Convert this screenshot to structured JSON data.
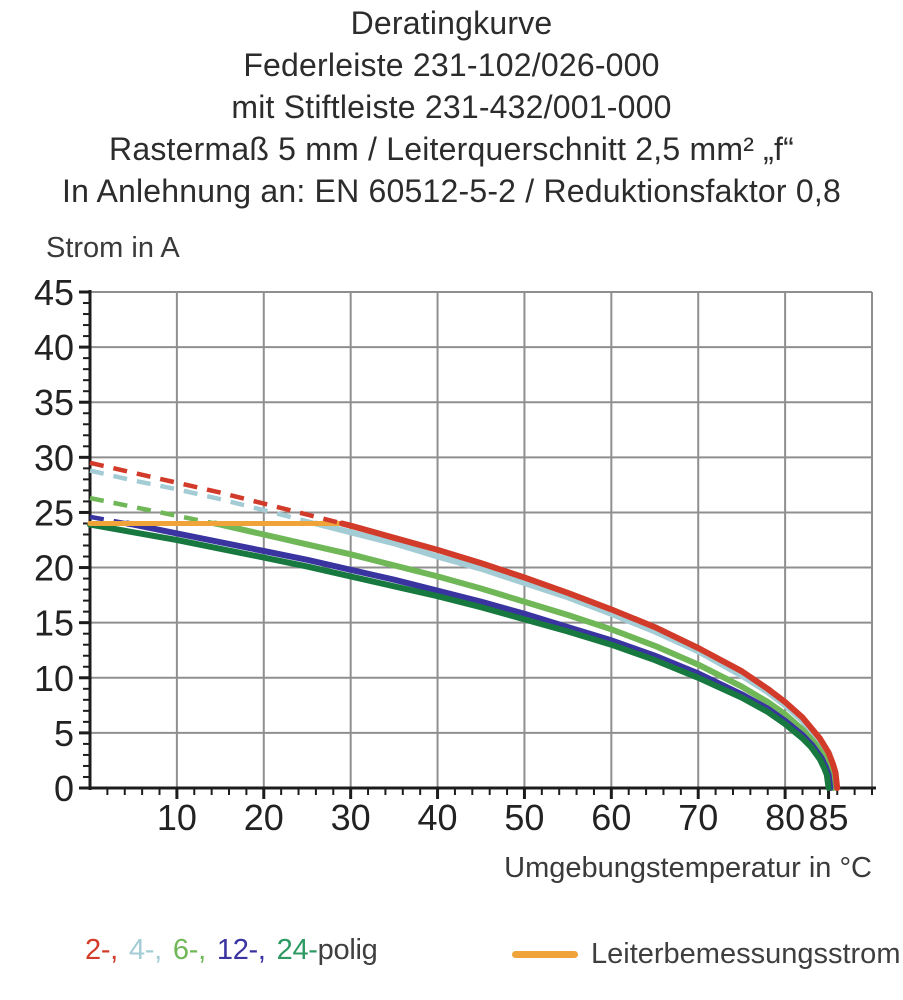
{
  "title": {
    "lines": [
      "Deratingkurve",
      "Federleiste 231-102/026-000",
      "mit Stiftleiste 231-432/001-000",
      "Rastermaß 5 mm / Leiterquerschnitt 2,5 mm² „f“",
      "In Anlehnung an: EN 60512-5-2 / Reduktionsfaktor 0,8"
    ]
  },
  "chart_data": {
    "type": "line",
    "title": "Deratingkurve",
    "xlabel": "Umgebungstemperatur in °C",
    "ylabel": "Strom in A",
    "xlim": [
      0,
      90
    ],
    "ylim": [
      0,
      45
    ],
    "x_major_ticks": [
      10,
      20,
      30,
      40,
      50,
      60,
      70,
      80,
      85
    ],
    "x_minor_step": 2,
    "y_major_ticks": [
      0,
      5,
      10,
      15,
      20,
      25,
      30,
      35,
      40,
      45
    ],
    "y_minor_step": 1,
    "grid": true,
    "legend_position": "bottom",
    "dash_above_current": 24,
    "rated_current": {
      "label": "Leiterbemessungsstrom",
      "value": 24,
      "x_start": 0,
      "x_end": 29,
      "color": "#f0a339"
    },
    "series": [
      {
        "name": "2-polig",
        "color": "#d23b29",
        "points": [
          [
            0,
            29.5
          ],
          [
            5,
            28.6
          ],
          [
            10,
            27.7
          ],
          [
            15,
            26.8
          ],
          [
            20,
            25.8
          ],
          [
            25,
            24.8
          ],
          [
            30,
            23.8
          ],
          [
            35,
            22.7
          ],
          [
            40,
            21.6
          ],
          [
            45,
            20.4
          ],
          [
            50,
            19.1
          ],
          [
            55,
            17.7
          ],
          [
            60,
            16.2
          ],
          [
            65,
            14.6
          ],
          [
            70,
            12.7
          ],
          [
            75,
            10.6
          ],
          [
            78,
            9.0
          ],
          [
            80,
            7.8
          ],
          [
            82,
            6.4
          ],
          [
            84,
            4.5
          ],
          [
            85,
            3.2
          ],
          [
            85.5,
            2.2
          ],
          [
            85.8,
            1.4
          ],
          [
            86,
            0
          ]
        ]
      },
      {
        "name": "4-polig",
        "color": "#a3ccd5",
        "points": [
          [
            0,
            28.8
          ],
          [
            5,
            27.9
          ],
          [
            10,
            27.1
          ],
          [
            15,
            26.2
          ],
          [
            20,
            25.2
          ],
          [
            25,
            24.2
          ],
          [
            30,
            23.2
          ],
          [
            35,
            22.2
          ],
          [
            40,
            21.0
          ],
          [
            45,
            19.9
          ],
          [
            50,
            18.6
          ],
          [
            55,
            17.3
          ],
          [
            60,
            15.8
          ],
          [
            65,
            14.2
          ],
          [
            70,
            12.4
          ],
          [
            75,
            10.2
          ],
          [
            78,
            8.7
          ],
          [
            80,
            7.5
          ],
          [
            82,
            6.1
          ],
          [
            83.8,
            4.4
          ],
          [
            84.8,
            3.1
          ],
          [
            85.3,
            2.2
          ],
          [
            85.6,
            1.4
          ],
          [
            85.8,
            0
          ]
        ]
      },
      {
        "name": "6-polig",
        "color": "#6fb757",
        "points": [
          [
            0,
            26.3
          ],
          [
            5,
            25.5
          ],
          [
            10,
            24.7
          ],
          [
            15,
            23.9
          ],
          [
            20,
            23.0
          ],
          [
            25,
            22.1
          ],
          [
            30,
            21.2
          ],
          [
            35,
            20.2
          ],
          [
            40,
            19.2
          ],
          [
            45,
            18.1
          ],
          [
            50,
            16.9
          ],
          [
            55,
            15.7
          ],
          [
            60,
            14.4
          ],
          [
            65,
            12.9
          ],
          [
            70,
            11.2
          ],
          [
            75,
            9.2
          ],
          [
            78,
            7.8
          ],
          [
            80,
            6.7
          ],
          [
            82,
            5.3
          ],
          [
            83.5,
            4.0
          ],
          [
            84.5,
            2.8
          ],
          [
            85,
            2.0
          ],
          [
            85.3,
            1.3
          ],
          [
            85.5,
            0
          ]
        ]
      },
      {
        "name": "12-polig",
        "color": "#3a34a0",
        "points": [
          [
            0,
            24.6
          ],
          [
            5,
            23.9
          ],
          [
            10,
            23.1
          ],
          [
            15,
            22.3
          ],
          [
            20,
            21.5
          ],
          [
            25,
            20.7
          ],
          [
            30,
            19.8
          ],
          [
            35,
            18.9
          ],
          [
            40,
            17.9
          ],
          [
            45,
            16.9
          ],
          [
            50,
            15.8
          ],
          [
            55,
            14.6
          ],
          [
            60,
            13.4
          ],
          [
            65,
            12.0
          ],
          [
            70,
            10.4
          ],
          [
            75,
            8.5
          ],
          [
            78,
            7.2
          ],
          [
            80,
            6.1
          ],
          [
            82,
            4.8
          ],
          [
            83.2,
            3.8
          ],
          [
            84.2,
            2.7
          ],
          [
            84.7,
            1.9
          ],
          [
            85,
            1.2
          ],
          [
            85.2,
            0
          ]
        ]
      },
      {
        "name": "24-polig",
        "color": "#17793f",
        "points": [
          [
            0,
            23.9
          ],
          [
            5,
            23.2
          ],
          [
            10,
            22.5
          ],
          [
            15,
            21.7
          ],
          [
            20,
            20.9
          ],
          [
            25,
            20.1
          ],
          [
            30,
            19.2
          ],
          [
            35,
            18.3
          ],
          [
            40,
            17.4
          ],
          [
            45,
            16.4
          ],
          [
            50,
            15.3
          ],
          [
            55,
            14.2
          ],
          [
            60,
            13.0
          ],
          [
            65,
            11.6
          ],
          [
            70,
            10.0
          ],
          [
            75,
            8.2
          ],
          [
            78,
            6.9
          ],
          [
            80,
            5.8
          ],
          [
            82,
            4.5
          ],
          [
            83,
            3.7
          ],
          [
            84,
            2.6
          ],
          [
            84.5,
            1.8
          ],
          [
            84.8,
            1.2
          ],
          [
            85,
            0
          ]
        ]
      }
    ]
  },
  "legend": {
    "pole_items": [
      {
        "text": "2-,",
        "color": "#d23b29"
      },
      {
        "text": "4-,",
        "color": "#a3ccd5"
      },
      {
        "text": "6-,",
        "color": "#6fb757"
      },
      {
        "text": "12-,",
        "color": "#3a34a0"
      },
      {
        "text": "24-",
        "color": "#2e9a63"
      },
      {
        "text": "polig",
        "color": "#3f3f3f"
      }
    ],
    "rated_label": "Leiterbemessungsstrom"
  },
  "colors": {
    "grid": "#8f8f8f",
    "axis": "#1c1c1c",
    "text": "#2d2d2d"
  }
}
